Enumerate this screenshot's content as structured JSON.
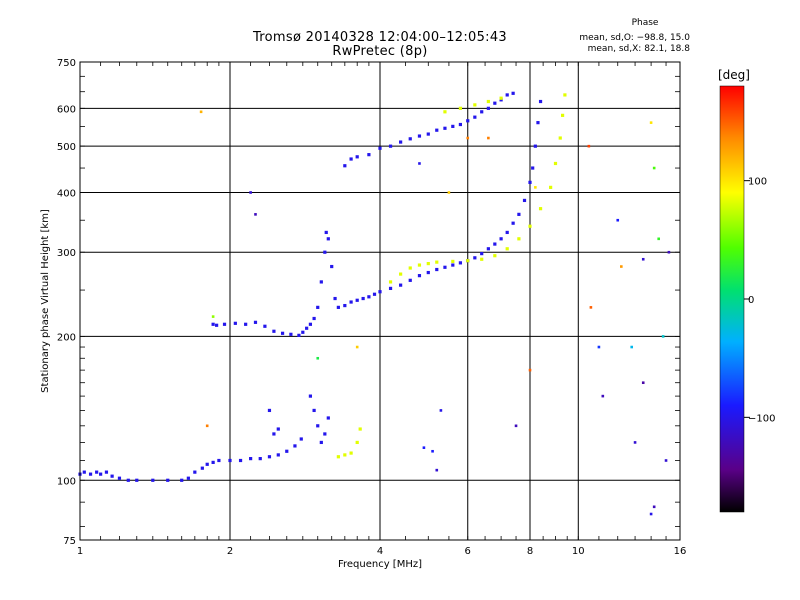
{
  "chart_data": {
    "type": "scatter",
    "title": "Tromsø 20140328 12:04:00–12:05:43",
    "subtitle": "RwPretec (8p)",
    "xlabel": "Frequency [MHz]",
    "ylabel": "Stationary phase Virtual Height [km]",
    "x_scale": "log",
    "y_scale": "log",
    "xlim": [
      1,
      16
    ],
    "ylim": [
      75,
      750
    ],
    "x_ticks": [
      "1",
      "2",
      "4",
      "6",
      "8",
      "10",
      "16"
    ],
    "y_ticks": [
      "75",
      "100",
      "200",
      "300",
      "400",
      "500",
      "600",
      "750"
    ],
    "grid": true,
    "phase_stats": {
      "header": "Phase",
      "line1": "mean, sd,O: −98.8, 15.0",
      "line2": "mean, sd,X:  82.1, 18.8"
    },
    "colorbar": {
      "unit": "[deg]",
      "range": [
        -180,
        180
      ],
      "ticks": [
        "100",
        "0",
        "−100"
      ],
      "tick_values": [
        100,
        0,
        -100
      ]
    },
    "series": [
      {
        "mode": "O",
        "mean_phase": -98.8,
        "points": [
          [
            1.0,
            103
          ],
          [
            1.02,
            104
          ],
          [
            1.05,
            103
          ],
          [
            1.08,
            104
          ],
          [
            1.1,
            103
          ],
          [
            1.13,
            104
          ],
          [
            1.16,
            102
          ],
          [
            1.2,
            101
          ],
          [
            1.25,
            100
          ],
          [
            1.3,
            100
          ],
          [
            1.4,
            100
          ],
          [
            1.5,
            100
          ],
          [
            1.6,
            100
          ],
          [
            1.65,
            101
          ],
          [
            1.7,
            104
          ],
          [
            1.76,
            106
          ],
          [
            1.8,
            108
          ],
          [
            1.85,
            109
          ],
          [
            1.9,
            110
          ],
          [
            2.0,
            110
          ],
          [
            2.1,
            110
          ],
          [
            2.2,
            111
          ],
          [
            2.3,
            111
          ],
          [
            2.4,
            112
          ],
          [
            2.5,
            113
          ],
          [
            2.6,
            115
          ],
          [
            2.7,
            118
          ],
          [
            2.78,
            122
          ],
          [
            1.85,
            212
          ],
          [
            1.88,
            211
          ],
          [
            1.95,
            212
          ],
          [
            2.05,
            213
          ],
          [
            2.15,
            212
          ],
          [
            2.25,
            214
          ],
          [
            2.35,
            210
          ],
          [
            2.45,
            205
          ],
          [
            2.55,
            203
          ],
          [
            2.65,
            202
          ],
          [
            2.75,
            201
          ],
          [
            2.8,
            204
          ],
          [
            2.85,
            208
          ],
          [
            2.9,
            212
          ],
          [
            2.95,
            218
          ],
          [
            3.0,
            230
          ],
          [
            3.05,
            260
          ],
          [
            3.1,
            300
          ],
          [
            3.12,
            330
          ],
          [
            3.15,
            320
          ],
          [
            3.2,
            280
          ],
          [
            3.25,
            240
          ],
          [
            3.3,
            230
          ],
          [
            3.4,
            232
          ],
          [
            3.5,
            236
          ],
          [
            3.6,
            238
          ],
          [
            3.7,
            240
          ],
          [
            3.8,
            242
          ],
          [
            3.9,
            245
          ],
          [
            4.0,
            248
          ],
          [
            4.2,
            252
          ],
          [
            4.4,
            256
          ],
          [
            4.6,
            262
          ],
          [
            4.8,
            268
          ],
          [
            5.0,
            272
          ],
          [
            5.2,
            276
          ],
          [
            5.4,
            279
          ],
          [
            5.6,
            282
          ],
          [
            5.8,
            285
          ],
          [
            6.0,
            288
          ],
          [
            6.2,
            292
          ],
          [
            6.4,
            298
          ],
          [
            6.6,
            305
          ],
          [
            6.8,
            312
          ],
          [
            7.0,
            320
          ],
          [
            7.2,
            330
          ],
          [
            7.4,
            345
          ],
          [
            7.6,
            360
          ],
          [
            7.8,
            385
          ],
          [
            8.0,
            420
          ],
          [
            8.1,
            450
          ],
          [
            8.2,
            500
          ],
          [
            8.3,
            560
          ],
          [
            8.4,
            620
          ],
          [
            3.4,
            455
          ],
          [
            3.5,
            470
          ],
          [
            3.6,
            475
          ],
          [
            3.8,
            480
          ],
          [
            4.0,
            495
          ],
          [
            4.2,
            500
          ],
          [
            4.4,
            510
          ],
          [
            4.6,
            518
          ],
          [
            4.8,
            525
          ],
          [
            5.0,
            530
          ],
          [
            5.2,
            540
          ],
          [
            5.4,
            545
          ],
          [
            5.6,
            550
          ],
          [
            5.8,
            555
          ],
          [
            6.0,
            565
          ],
          [
            6.2,
            575
          ],
          [
            6.4,
            590
          ],
          [
            6.6,
            600
          ],
          [
            6.8,
            615
          ],
          [
            7.0,
            625
          ],
          [
            7.2,
            640
          ],
          [
            7.4,
            645
          ],
          [
            2.9,
            150
          ],
          [
            2.95,
            140
          ],
          [
            3.0,
            130
          ],
          [
            3.05,
            120
          ],
          [
            3.1,
            125
          ],
          [
            3.15,
            135
          ],
          [
            2.45,
            125
          ],
          [
            2.5,
            128
          ],
          [
            2.4,
            140
          ]
        ]
      },
      {
        "mode": "X",
        "mean_phase": 82.1,
        "points": [
          [
            4.2,
            260
          ],
          [
            4.4,
            270
          ],
          [
            4.6,
            278
          ],
          [
            4.8,
            282
          ],
          [
            5.0,
            284
          ],
          [
            5.2,
            286
          ],
          [
            5.6,
            287
          ],
          [
            6.0,
            288
          ],
          [
            6.4,
            290
          ],
          [
            6.8,
            295
          ],
          [
            7.2,
            305
          ],
          [
            7.6,
            320
          ],
          [
            8.0,
            340
          ],
          [
            8.4,
            370
          ],
          [
            8.8,
            410
          ],
          [
            9.0,
            460
          ],
          [
            9.2,
            520
          ],
          [
            9.3,
            580
          ],
          [
            9.4,
            640
          ],
          [
            3.3,
            112
          ],
          [
            3.4,
            113
          ],
          [
            3.5,
            114
          ],
          [
            3.6,
            120
          ],
          [
            3.65,
            128
          ],
          [
            5.4,
            590
          ],
          [
            5.8,
            600
          ],
          [
            6.2,
            610
          ],
          [
            6.6,
            620
          ],
          [
            7.0,
            630
          ]
        ]
      }
    ],
    "scattered_points": [
      [
        1.75,
        590,
        120
      ],
      [
        1.8,
        130,
        140
      ],
      [
        1.85,
        220,
        60
      ],
      [
        2.2,
        400,
        -110
      ],
      [
        2.25,
        360,
        -120
      ],
      [
        3.0,
        180,
        20
      ],
      [
        3.6,
        190,
        110
      ],
      [
        4.8,
        460,
        -100
      ],
      [
        5.5,
        400,
        110
      ],
      [
        6.0,
        520,
        140
      ],
      [
        10.5,
        500,
        160
      ],
      [
        10.6,
        230,
        150
      ],
      [
        12.0,
        350,
        -90
      ],
      [
        12.2,
        280,
        130
      ],
      [
        13.5,
        290,
        -110
      ],
      [
        14.0,
        560,
        100
      ],
      [
        14.2,
        450,
        40
      ],
      [
        14.5,
        320,
        30
      ],
      [
        14.8,
        200,
        -20
      ],
      [
        11.0,
        190,
        -80
      ],
      [
        11.2,
        150,
        -120
      ],
      [
        12.8,
        190,
        -30
      ],
      [
        13.0,
        120,
        -110
      ],
      [
        13.5,
        160,
        -130
      ],
      [
        14.0,
        85,
        -100
      ],
      [
        14.2,
        88,
        -120
      ],
      [
        15.0,
        110,
        -110
      ],
      [
        15.2,
        300,
        -120
      ],
      [
        4.9,
        117,
        -90
      ],
      [
        5.1,
        115,
        -90
      ],
      [
        5.2,
        105,
        -110
      ],
      [
        5.3,
        140,
        -100
      ],
      [
        7.5,
        130,
        -120
      ],
      [
        8.0,
        170,
        150
      ],
      [
        8.2,
        410,
        100
      ],
      [
        6.6,
        520,
        140
      ]
    ]
  }
}
